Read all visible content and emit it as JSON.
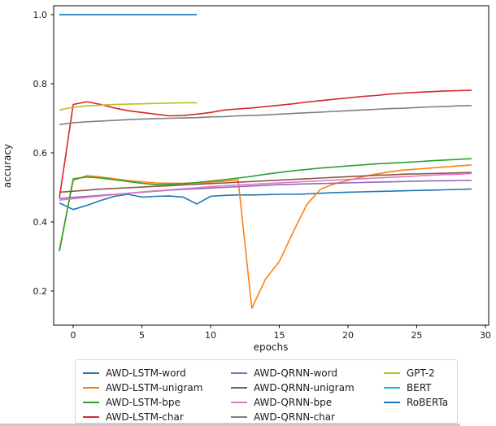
{
  "chart_data": {
    "type": "line",
    "title": "",
    "xlabel": "epochs",
    "ylabel": "accuracy",
    "xlim": [
      -1.42,
      30.24
    ],
    "ylim": [
      0.101,
      1.026
    ],
    "x_ticks": [
      0,
      5,
      10,
      15,
      20,
      25,
      30
    ],
    "y_ticks": [
      0.2,
      0.4,
      0.6,
      0.8,
      1.0
    ],
    "grid": false,
    "legend_position": "below-chart",
    "series": [
      {
        "name": "AWD-LSTM-word",
        "color": "#1f77b4",
        "x": [
          -1,
          0,
          1,
          2,
          3,
          4,
          5,
          6,
          7,
          8,
          9,
          10,
          11,
          12,
          13,
          14,
          15,
          16,
          17,
          18,
          19,
          20,
          21,
          22,
          23,
          24,
          25,
          26,
          27,
          28,
          29
        ],
        "y": [
          0.455,
          0.436,
          0.448,
          0.462,
          0.474,
          0.48,
          0.472,
          0.474,
          0.475,
          0.472,
          0.452,
          0.474,
          0.477,
          0.478,
          0.478,
          0.479,
          0.48,
          0.48,
          0.481,
          0.483,
          0.485,
          0.486,
          0.487,
          0.488,
          0.489,
          0.49,
          0.491,
          0.492,
          0.493,
          0.494,
          0.495
        ]
      },
      {
        "name": "AWD-LSTM-unigram",
        "color": "#ff7f0e",
        "x": [
          -1,
          0,
          1,
          2,
          3,
          4,
          5,
          6,
          7,
          8,
          9,
          10,
          11,
          12,
          13,
          14,
          15,
          16,
          17,
          18,
          19,
          20,
          21,
          22,
          23,
          24,
          25,
          26,
          27,
          28,
          29
        ],
        "y": [
          0.32,
          0.52,
          0.534,
          0.53,
          0.525,
          0.52,
          0.516,
          0.513,
          0.512,
          0.512,
          0.513,
          0.515,
          0.518,
          0.522,
          0.15,
          0.235,
          0.285,
          0.37,
          0.45,
          0.495,
          0.51,
          0.52,
          0.53,
          0.538,
          0.545,
          0.55,
          0.553,
          0.556,
          0.559,
          0.562,
          0.565
        ]
      },
      {
        "name": "AWD-LSTM-bpe",
        "color": "#2ca02c",
        "x": [
          -1,
          0,
          1,
          2,
          3,
          4,
          5,
          6,
          7,
          8,
          9,
          10,
          11,
          12,
          13,
          14,
          15,
          16,
          17,
          18,
          19,
          20,
          21,
          22,
          23,
          24,
          25,
          26,
          27,
          28,
          29
        ],
        "y": [
          0.315,
          0.525,
          0.53,
          0.527,
          0.522,
          0.517,
          0.512,
          0.508,
          0.509,
          0.511,
          0.514,
          0.518,
          0.522,
          0.527,
          0.532,
          0.538,
          0.543,
          0.548,
          0.552,
          0.556,
          0.559,
          0.562,
          0.565,
          0.568,
          0.57,
          0.572,
          0.574,
          0.577,
          0.579,
          0.581,
          0.583
        ]
      },
      {
        "name": "AWD-LSTM-char",
        "color": "#d62728",
        "x": [
          -1,
          0,
          1,
          2,
          3,
          4,
          5,
          6,
          7,
          8,
          9,
          10,
          11,
          12,
          13,
          14,
          15,
          16,
          17,
          18,
          19,
          20,
          21,
          22,
          23,
          24,
          25,
          26,
          27,
          28,
          29
        ],
        "y": [
          0.47,
          0.74,
          0.748,
          0.74,
          0.73,
          0.722,
          0.717,
          0.712,
          0.707,
          0.708,
          0.712,
          0.717,
          0.724,
          0.727,
          0.73,
          0.734,
          0.738,
          0.742,
          0.747,
          0.751,
          0.755,
          0.759,
          0.763,
          0.766,
          0.77,
          0.773,
          0.775,
          0.777,
          0.779,
          0.78,
          0.781
        ]
      },
      {
        "name": "AWD-QRNN-word",
        "color": "#9467bd",
        "x": [
          -1,
          0,
          1,
          2,
          3,
          4,
          5,
          6,
          7,
          8,
          9,
          10,
          11,
          12,
          13,
          14,
          15,
          16,
          17,
          18,
          19,
          20,
          21,
          22,
          23,
          24,
          25,
          26,
          27,
          28,
          29
        ],
        "y": [
          0.468,
          0.471,
          0.474,
          0.477,
          0.48,
          0.483,
          0.486,
          0.489,
          0.492,
          0.494,
          0.496,
          0.498,
          0.5,
          0.502,
          0.504,
          0.506,
          0.508,
          0.509,
          0.51,
          0.511,
          0.512,
          0.513,
          0.514,
          0.515,
          0.516,
          0.517,
          0.518,
          0.519,
          0.519,
          0.52,
          0.52
        ]
      },
      {
        "name": "AWD-QRNN-unigram",
        "color": "#8c564b",
        "x": [
          -1,
          0,
          1,
          2,
          3,
          4,
          5,
          6,
          7,
          8,
          9,
          10,
          11,
          12,
          13,
          14,
          15,
          16,
          17,
          18,
          19,
          20,
          21,
          22,
          23,
          24,
          25,
          26,
          27,
          28,
          29
        ],
        "y": [
          0.486,
          0.489,
          0.492,
          0.495,
          0.497,
          0.499,
          0.501,
          0.503,
          0.505,
          0.507,
          0.509,
          0.511,
          0.513,
          0.515,
          0.517,
          0.519,
          0.521,
          0.523,
          0.525,
          0.527,
          0.529,
          0.531,
          0.533,
          0.535,
          0.536,
          0.538,
          0.539,
          0.54,
          0.541,
          0.542,
          0.543
        ]
      },
      {
        "name": "AWD-QRNN-bpe",
        "color": "#e377c2",
        "x": [
          -1,
          0,
          1,
          2,
          3,
          4,
          5,
          6,
          7,
          8,
          9,
          10,
          11,
          12,
          13,
          14,
          15,
          16,
          17,
          18,
          19,
          20,
          21,
          22,
          23,
          24,
          25,
          26,
          27,
          28,
          29
        ],
        "y": [
          0.463,
          0.467,
          0.471,
          0.475,
          0.479,
          0.483,
          0.487,
          0.49,
          0.493,
          0.496,
          0.499,
          0.502,
          0.505,
          0.507,
          0.509,
          0.511,
          0.513,
          0.515,
          0.517,
          0.519,
          0.521,
          0.523,
          0.525,
          0.527,
          0.529,
          0.531,
          0.533,
          0.535,
          0.537,
          0.538,
          0.54
        ]
      },
      {
        "name": "AWD-QRNN-char",
        "color": "#7f7f7f",
        "x": [
          -1,
          0,
          1,
          2,
          3,
          4,
          5,
          6,
          7,
          8,
          9,
          10,
          11,
          12,
          13,
          14,
          15,
          16,
          17,
          18,
          19,
          20,
          21,
          22,
          23,
          24,
          25,
          26,
          27,
          28,
          29
        ],
        "y": [
          0.682,
          0.687,
          0.69,
          0.692,
          0.694,
          0.696,
          0.698,
          0.699,
          0.7,
          0.701,
          0.702,
          0.704,
          0.705,
          0.707,
          0.708,
          0.71,
          0.712,
          0.714,
          0.716,
          0.718,
          0.72,
          0.722,
          0.724,
          0.726,
          0.728,
          0.729,
          0.731,
          0.733,
          0.734,
          0.736,
          0.737
        ]
      },
      {
        "name": "GPT-2",
        "color": "#bcbd22",
        "x": [
          -1,
          0,
          1,
          2,
          3,
          4,
          5,
          6,
          7,
          8,
          9
        ],
        "y": [
          0.724,
          0.732,
          0.736,
          0.738,
          0.74,
          0.741,
          0.742,
          0.743,
          0.744,
          0.745,
          0.745
        ]
      },
      {
        "name": "BERT",
        "color": "#17becf",
        "x": [
          -1,
          0,
          1,
          2,
          3,
          4,
          5,
          6,
          7,
          8,
          9
        ],
        "y": [
          1.0,
          1.0,
          1.0,
          1.0,
          1.0,
          1.0,
          1.0,
          1.0,
          1.0,
          1.0,
          1.0
        ]
      },
      {
        "name": "RoBERTa",
        "color": "#1f77b4",
        "x": [
          -1,
          0,
          1,
          2,
          3,
          4,
          5,
          6,
          7,
          8,
          9
        ],
        "y": [
          1.0,
          1.0,
          1.0,
          1.0,
          1.0,
          1.0,
          1.0,
          1.0,
          1.0,
          1.0,
          1.0
        ]
      }
    ]
  },
  "legend": {
    "columns": [
      [
        "AWD-LSTM-word",
        "AWD-LSTM-unigram",
        "AWD-LSTM-bpe",
        "AWD-LSTM-char"
      ],
      [
        "AWD-QRNN-word",
        "AWD-QRNN-unigram",
        "AWD-QRNN-bpe",
        "AWD-QRNN-char"
      ],
      [
        "GPT-2",
        "BERT",
        "RoBERTa"
      ]
    ]
  }
}
